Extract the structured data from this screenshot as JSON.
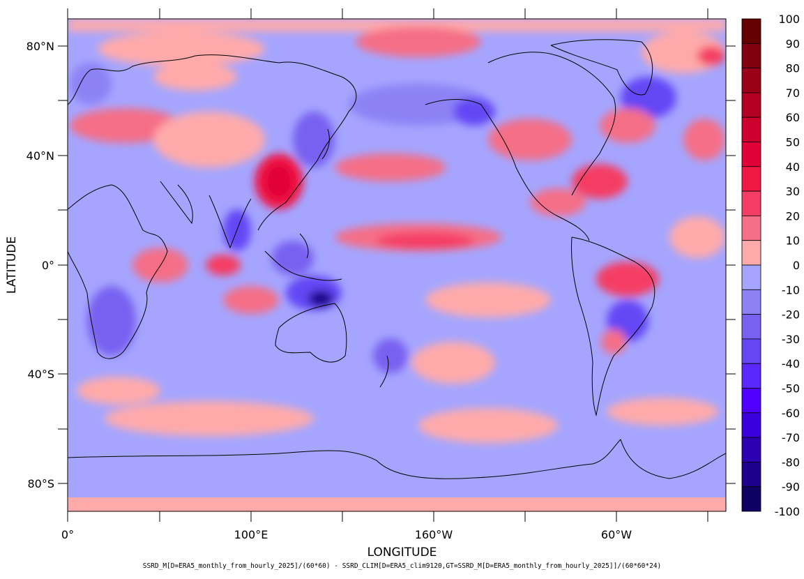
{
  "map": {
    "xlabel": "LONGITUDE",
    "ylabel": "LATITUDE",
    "x_ticks": [
      "0°",
      "100°E",
      "160°W",
      "60°W"
    ],
    "y_ticks": [
      "80°N",
      "40°N",
      "0°",
      "40°S",
      "80°S"
    ],
    "formula": "SSRD_M[D=ERA5_monthly_from_hourly_2025]/(60*60) - SSRD_CLIM[D=ERA5_clim9120,GT=SSRD_M[D=ERA5_monthly_from_hourly_2025]]/(60*60*24)",
    "colorbar": {
      "labels": [
        "100",
        "90",
        "80",
        "70",
        "60",
        "50",
        "40",
        "30",
        "20",
        "10",
        "0",
        "-10",
        "-20",
        "-30",
        "-40",
        "-50",
        "-60",
        "-70",
        "-80",
        "-90",
        "-100"
      ],
      "colors": [
        "#640000",
        "#82000f",
        "#9b0019",
        "#b40023",
        "#cd002d",
        "#e10037",
        "#f01946",
        "#f53c64",
        "#f56e87",
        "#ffaaaa",
        "#a5a5ff",
        "#8c82f5",
        "#7860f0",
        "#6446f5",
        "#5a28fa",
        "#5000ff",
        "#3c00dc",
        "#2d00b4",
        "#1e008c",
        "#0f0064"
      ]
    }
  }
}
